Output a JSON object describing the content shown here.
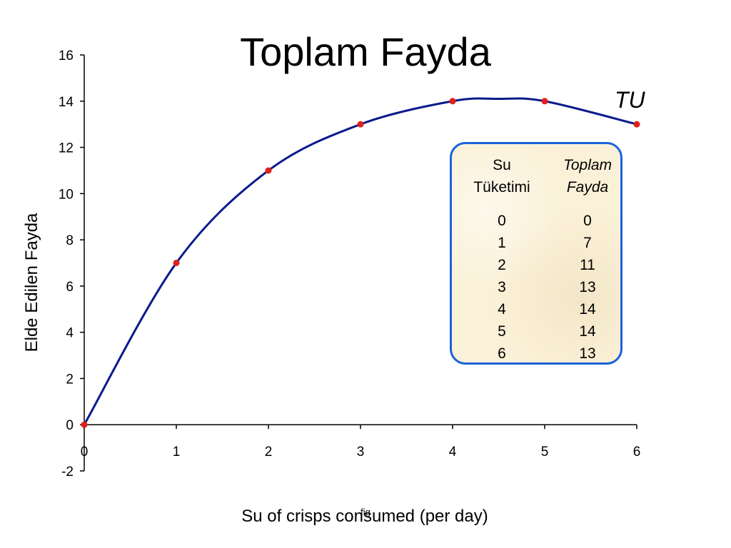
{
  "chart_data": {
    "type": "line",
    "title": "Toplam Fayda",
    "xlabel": "Su of crisps consumed (per day)",
    "ylabel": "Elde Edilen Fayda",
    "xlim": [
      0,
      6
    ],
    "ylim": [
      -2,
      16
    ],
    "xticks": [
      "0",
      "1",
      "2",
      "3",
      "4",
      "5",
      "6"
    ],
    "yticks": [
      "-2",
      "0",
      "2",
      "4",
      "6",
      "8",
      "10",
      "12",
      "14",
      "16"
    ],
    "series": [
      {
        "name": "TU",
        "x": [
          0,
          1,
          2,
          3,
          4,
          5,
          6
        ],
        "y": [
          0,
          7,
          11,
          13,
          14,
          14,
          13
        ],
        "peak_x": 4.5,
        "peak_y": 14.1,
        "line_color": "#0a1a8c",
        "marker_color": "#e0201a"
      }
    ],
    "grid": false,
    "footnote": "fig",
    "table": {
      "headers": [
        {
          "line1": "Su",
          "line2": "Tüketimi"
        },
        {
          "line1": "Toplam",
          "line2": "Fayda"
        }
      ],
      "rows": [
        [
          "0",
          "0"
        ],
        [
          "1",
          "7"
        ],
        [
          "2",
          "11"
        ],
        [
          "3",
          "13"
        ],
        [
          "4",
          "14"
        ],
        [
          "5",
          "14"
        ],
        [
          "6",
          "13"
        ]
      ],
      "border_color": "#1a63d8",
      "background_color": "#fbf1d8"
    }
  }
}
